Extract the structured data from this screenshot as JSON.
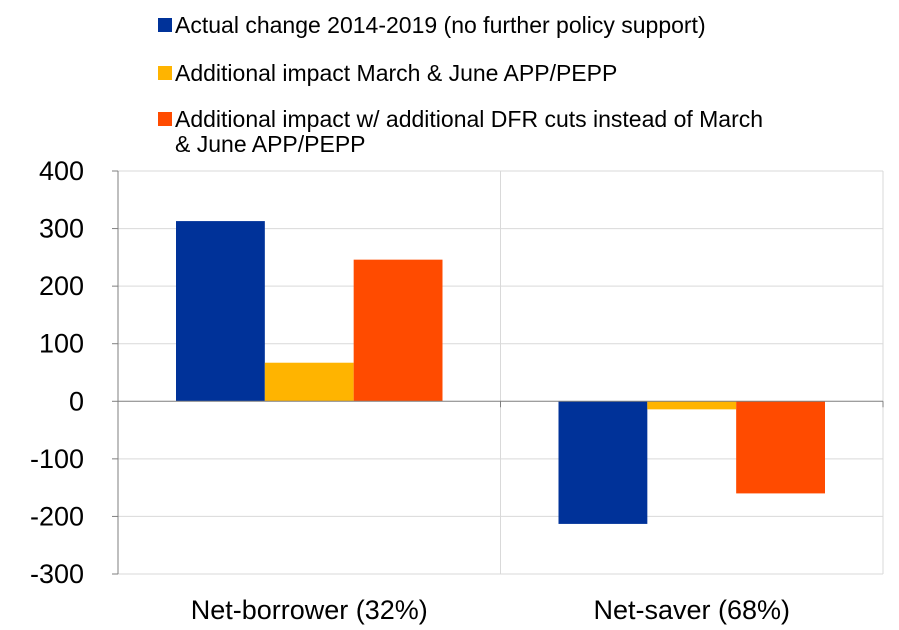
{
  "chart_data": {
    "type": "bar",
    "title": "",
    "xlabel": "",
    "ylabel": "",
    "categories": [
      "Net-borrower (32%)",
      "Net-saver (68%)"
    ],
    "series": [
      {
        "name": "Actual change 2014-2019 (no further policy support)",
        "color": "#003299",
        "values": [
          313,
          -213
        ]
      },
      {
        "name": "Additional impact March & June APP/PEPP",
        "color": "#FFB400",
        "values": [
          67,
          -14
        ]
      },
      {
        "name": "Additional impact w/ additional DFR cuts instead of March & June APP/PEPP",
        "color": "#FF4B00",
        "values": [
          246,
          -160
        ]
      }
    ],
    "ylim": [
      -300,
      400
    ],
    "yticks": [
      -300,
      -200,
      -100,
      0,
      100,
      200,
      300,
      400
    ],
    "grid": true,
    "legend_position": "top"
  }
}
